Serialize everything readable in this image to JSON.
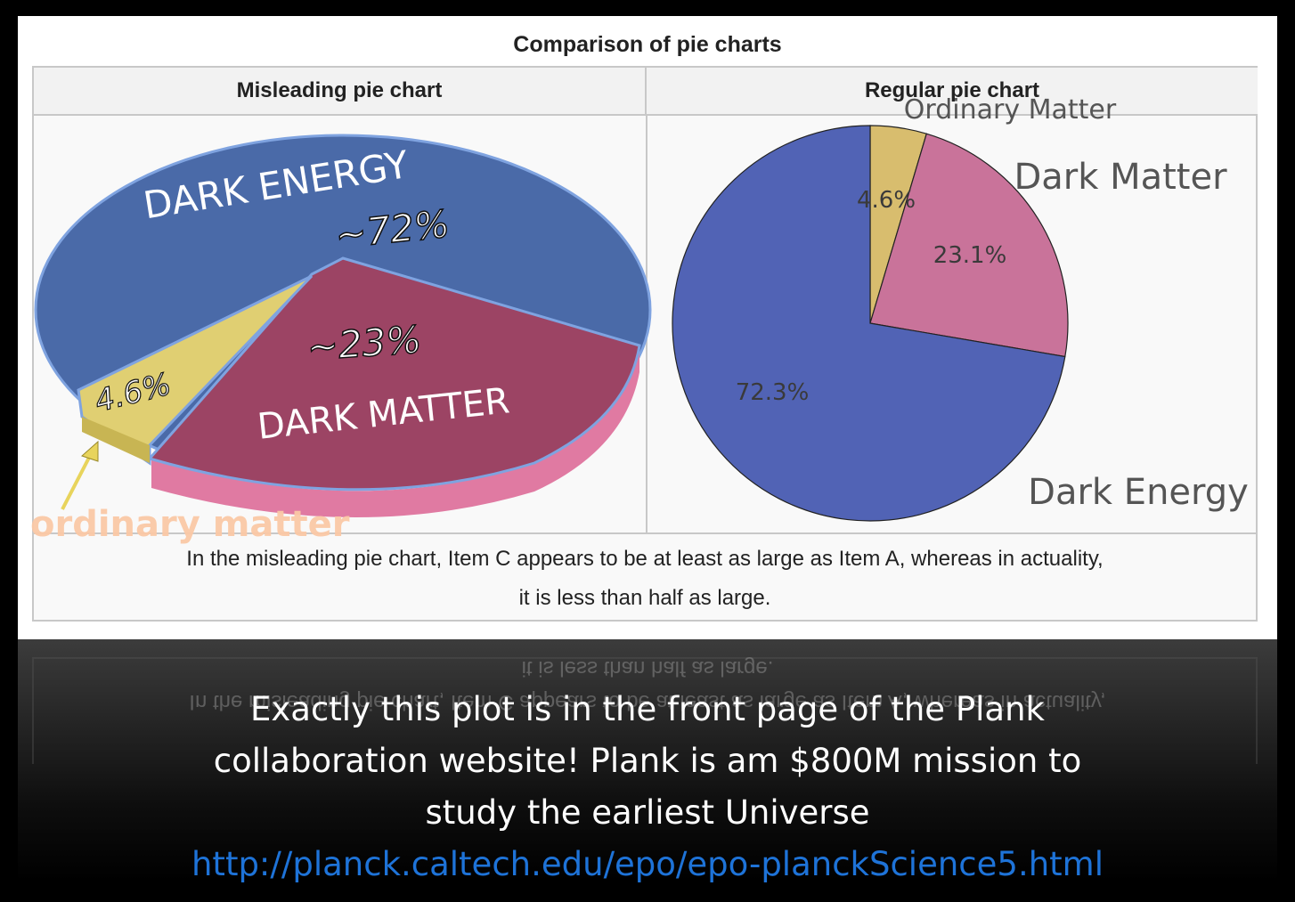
{
  "card": {
    "title": "Comparison of pie charts",
    "col_left": "Misleading pie chart",
    "col_right": "Regular pie chart",
    "caption_line1": "In the misleading pie chart, Item C appears to be at least as large as Item A, whereas in actuality,",
    "caption_line2": "it is less than half as large."
  },
  "chart_data": [
    {
      "type": "pie",
      "title": "Misleading pie chart",
      "style": "3d-perspective",
      "labels": [
        "DARK ENERGY",
        "DARK MATTER",
        "ordinary matter"
      ],
      "value_labels": [
        "~72%",
        "~23%",
        "4.6%"
      ],
      "values": [
        72,
        23,
        4.6
      ],
      "colors": [
        "#4a6aa8",
        "#9c4464",
        "#e0cf72"
      ],
      "annotation": "ordinary matter"
    },
    {
      "type": "pie",
      "title": "Regular pie chart",
      "labels": [
        "Ordinary Matter",
        "Dark Matter",
        "Dark Energy"
      ],
      "value_labels": [
        "4.6%",
        "23.1%",
        "72.3%"
      ],
      "values": [
        4.6,
        23.1,
        72.3
      ],
      "colors": [
        "#d8bd6e",
        "#c9739a",
        "#5163b5"
      ]
    }
  ],
  "slide_caption": {
    "text_line1": "Exactly this plot is in the front page of the Plank",
    "text_line2": "collaboration website! Plank is am $800M mission to",
    "text_line3": "study the earliest Universe",
    "link": "http://planck.caltech.edu/epo/epo-planckScience5.html"
  }
}
